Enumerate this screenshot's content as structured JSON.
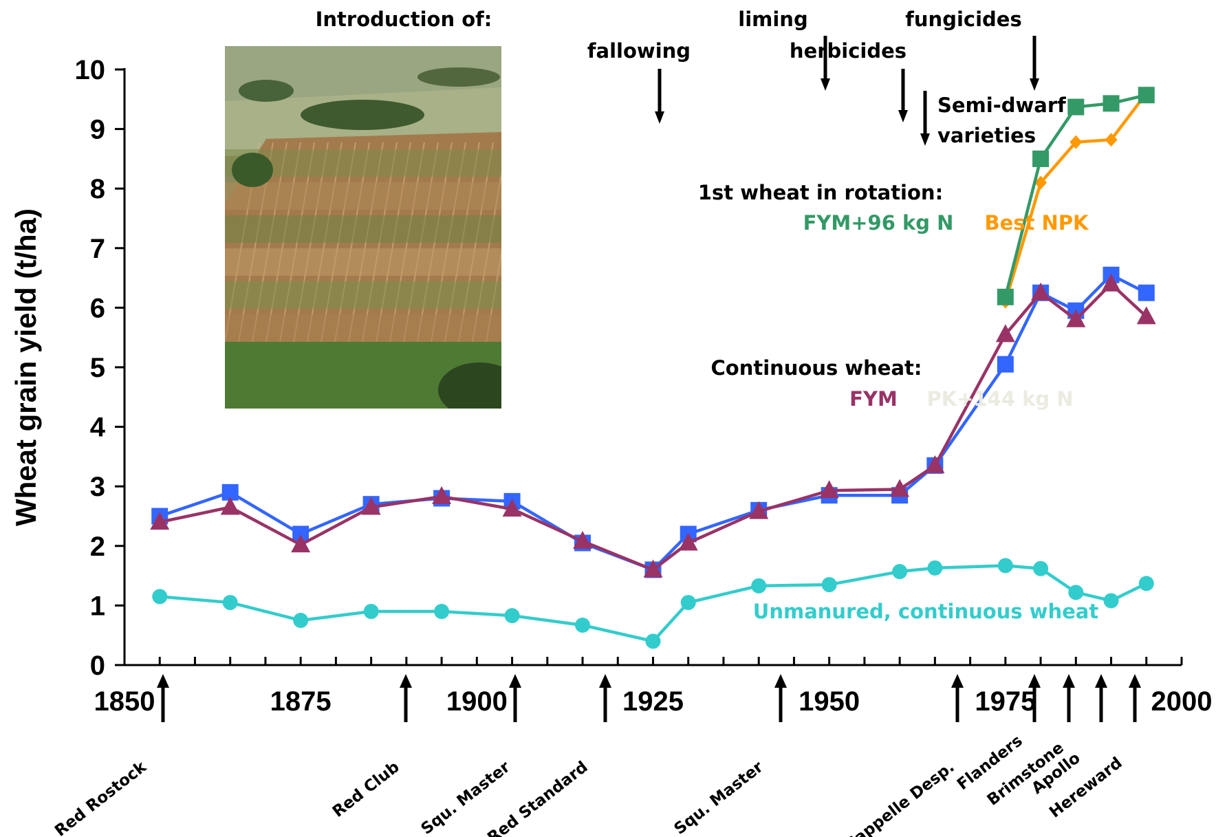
{
  "chart_data": {
    "type": "line",
    "ylabel": "Wheat grain yield (t/ha)",
    "xlabel": "",
    "xlim": [
      1850,
      2000
    ],
    "ylim": [
      0,
      10
    ],
    "x_ticks": [
      1850,
      1875,
      1900,
      1925,
      1950,
      1975,
      2000
    ],
    "y_ticks": [
      0,
      1,
      2,
      3,
      4,
      5,
      6,
      7,
      8,
      9,
      10
    ],
    "grid": false,
    "series": [
      {
        "name": "PK+144 kg N",
        "group": "Continuous wheat:",
        "color": "#3366ff",
        "marker": "square",
        "x": [
          1855,
          1865,
          1875,
          1885,
          1895,
          1905,
          1915,
          1925,
          1930,
          1940,
          1950,
          1960,
          1965,
          1975,
          1980,
          1985,
          1990,
          1995
        ],
        "y": [
          2.5,
          2.9,
          2.2,
          2.7,
          2.8,
          2.75,
          2.05,
          1.6,
          2.2,
          2.6,
          2.85,
          2.85,
          3.35,
          5.05,
          6.25,
          5.95,
          6.55,
          6.25
        ]
      },
      {
        "name": "FYM",
        "group": "Continuous wheat:",
        "color": "#993366",
        "marker": "triangle",
        "x": [
          1855,
          1865,
          1875,
          1885,
          1895,
          1905,
          1915,
          1925,
          1930,
          1940,
          1950,
          1960,
          1965,
          1975,
          1980,
          1985,
          1990,
          1995
        ],
        "y": [
          2.4,
          2.65,
          2.02,
          2.65,
          2.83,
          2.62,
          2.08,
          1.6,
          2.05,
          2.58,
          2.93,
          2.95,
          3.35,
          5.55,
          6.25,
          5.8,
          6.4,
          5.85
        ]
      },
      {
        "name": "Unmanured, continuous wheat",
        "color": "#33cccc",
        "marker": "circle",
        "x": [
          1855,
          1865,
          1875,
          1885,
          1895,
          1905,
          1915,
          1925,
          1930,
          1940,
          1950,
          1960,
          1965,
          1975,
          1980,
          1985,
          1990,
          1995
        ],
        "y": [
          1.15,
          1.05,
          0.75,
          0.9,
          0.9,
          0.83,
          0.67,
          0.4,
          1.05,
          1.33,
          1.35,
          1.57,
          1.63,
          1.67,
          1.62,
          1.22,
          1.08,
          1.37
        ]
      },
      {
        "name": "Best NPK",
        "group": "1st wheat in rotation:",
        "color": "#ff9900",
        "marker": "diamond",
        "x": [
          1975,
          1980,
          1985,
          1990,
          1995
        ],
        "y": [
          6.1,
          8.1,
          8.78,
          8.82,
          9.6
        ]
      },
      {
        "name": "FYM+96 kg N",
        "group": "1st wheat in rotation:",
        "color": "#339966",
        "marker": "square",
        "x": [
          1975,
          1980,
          1985,
          1990,
          1995
        ],
        "y": [
          6.18,
          8.5,
          9.37,
          9.43,
          9.57
        ]
      }
    ],
    "introductions": {
      "heading": "Introduction of:",
      "items": [
        {
          "label": "fallowing",
          "year": 1926
        },
        {
          "label": "liming",
          "year": 1951
        },
        {
          "label": "herbicides",
          "year": 1961
        },
        {
          "label": "fungicides",
          "year": 1979
        },
        {
          "label": "Semi-dwarf varieties",
          "year": 1964
        }
      ]
    },
    "varieties": [
      {
        "label": "Red Rostock",
        "year": 1855
      },
      {
        "label": "Red Club",
        "year": 1890
      },
      {
        "label": "Squ. Master",
        "year": 1905
      },
      {
        "label": "Red Standard",
        "year": 1918
      },
      {
        "label": "Squ. Master",
        "year": 1944
      },
      {
        "label": "Cappelle Desp.",
        "year": 1970
      },
      {
        "label": "Flanders",
        "year": 1979
      },
      {
        "label": "Brimstone",
        "year": 1984
      },
      {
        "label": "Apollo",
        "year": 1989
      },
      {
        "label": "Hereward",
        "year": 1994
      }
    ]
  },
  "photo": {
    "name": "aerial-photo-of-field-plots"
  }
}
